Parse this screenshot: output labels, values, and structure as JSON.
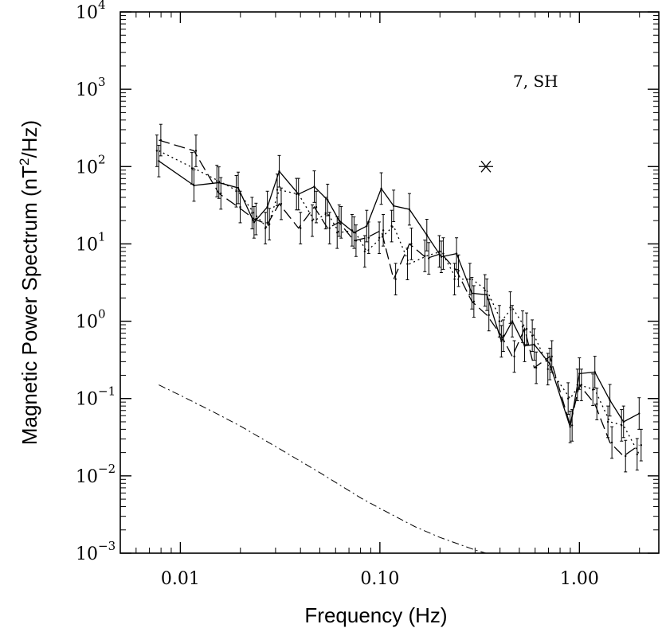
{
  "chart_data": {
    "type": "line",
    "scale": {
      "x": "log",
      "y": "log"
    },
    "xlim": [
      0.005,
      2.5
    ],
    "ylim": [
      0.001,
      10000
    ],
    "xlabel": "Frequency (Hz)",
    "ylabel_parts": [
      "Magnetic Power Spectrum (nT",
      "2",
      "/Hz)"
    ],
    "annotation": "7, SH",
    "x_ticks": [
      {
        "value": 0.01,
        "label": "0.01"
      },
      {
        "value": 0.1,
        "label": "0.10"
      },
      {
        "value": 1,
        "label": "1.00"
      }
    ],
    "y_ticks": [
      {
        "value": 0.001,
        "base": "10",
        "exp": "−3"
      },
      {
        "value": 0.01,
        "base": "10",
        "exp": "−2"
      },
      {
        "value": 0.1,
        "base": "10",
        "exp": "−1"
      },
      {
        "value": 1,
        "base": "10",
        "exp": "0"
      },
      {
        "value": 10,
        "base": "10",
        "exp": "1"
      },
      {
        "value": 100,
        "base": "10",
        "exp": "2"
      },
      {
        "value": 1000,
        "base": "10",
        "exp": "3"
      },
      {
        "value": 10000,
        "base": "10",
        "exp": "4"
      }
    ],
    "x": [
      0.0078,
      0.0117,
      0.0156,
      0.0195,
      0.0234,
      0.0273,
      0.0313,
      0.0391,
      0.0469,
      0.0547,
      0.0625,
      0.0742,
      0.0859,
      0.1016,
      0.1172,
      0.1406,
      0.1719,
      0.2031,
      0.2422,
      0.2891,
      0.3438,
      0.4063,
      0.4609,
      0.5313,
      0.5938,
      0.7109,
      0.8984,
      1.0,
      1.1953,
      1.4219,
      1.6641,
      1.9922
    ],
    "series": [
      {
        "name": "solid",
        "style": "solid",
        "values": [
          118,
          57,
          62,
          53,
          19,
          30,
          87,
          44,
          55,
          37,
          20,
          14,
          17,
          52,
          31,
          28,
          13,
          6.8,
          7.5,
          2.3,
          2.2,
          0.55,
          1.0,
          0.48,
          0.5,
          0.28,
          0.043,
          0.21,
          0.22,
          0.095,
          0.05,
          0.064
        ],
        "err_factor": 1.6
      },
      {
        "name": "dotted",
        "style": "dotted",
        "values": [
          160,
          95,
          65,
          48,
          25,
          16,
          50,
          44,
          20,
          25,
          14,
          15,
          8,
          12,
          17,
          5.5,
          7,
          8,
          3.5,
          3.5,
          2.5,
          1.0,
          1.5,
          0.85,
          0.65,
          0.24,
          0.1,
          0.15,
          0.13,
          0.05,
          0.045,
          0.019
        ],
        "err_factor": 1.6
      },
      {
        "name": "dashed",
        "style": "dashed",
        "values": [
          220,
          160,
          45,
          30,
          21,
          18,
          33,
          16,
          30,
          16,
          19,
          11,
          12,
          15,
          3.5,
          10,
          6.5,
          7.5,
          4.5,
          1.8,
          1.2,
          0.65,
          0.35,
          0.8,
          0.25,
          0.35,
          0.045,
          0.15,
          0.085,
          0.027,
          0.018,
          0.025
        ],
        "err_factor": 1.6
      }
    ],
    "model_curve": {
      "style": "dash-dot",
      "x": [
        0.0078,
        0.01,
        0.015,
        0.02,
        0.03,
        0.05,
        0.08,
        0.1,
        0.15,
        0.2,
        0.3,
        0.34
      ],
      "values": [
        0.15,
        0.11,
        0.065,
        0.044,
        0.024,
        0.011,
        0.0052,
        0.0038,
        0.0022,
        0.0016,
        0.0011,
        0.001
      ]
    },
    "marker": {
      "symbol": "asterisk",
      "x": 0.34,
      "y": 100
    }
  }
}
